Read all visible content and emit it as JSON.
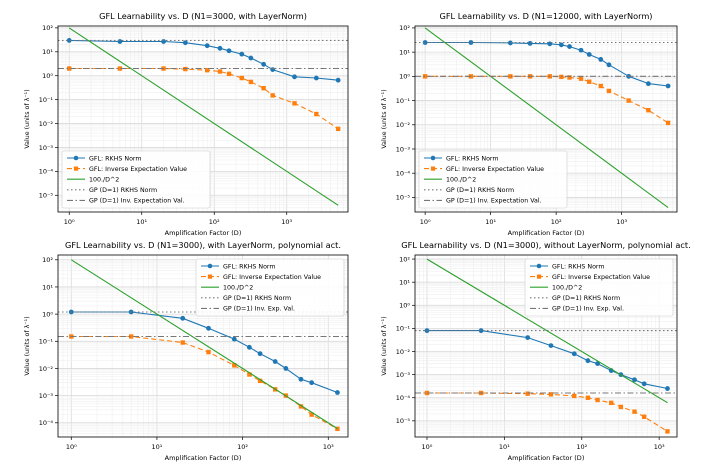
{
  "chart_data": [
    {
      "type": "line",
      "title": "GFL Learnability vs. D (N1=3000, with LayerNorm)",
      "xlabel": "Amplification Factor (D)",
      "ylabel": "Value (units of λ⁻¹)",
      "xscale": "log",
      "yscale": "log",
      "xlim": [
        0.7,
        7000
      ],
      "ylim": [
        2e-06,
        120
      ],
      "xticks": [
        1,
        10,
        100,
        1000
      ],
      "xtick_labels": [
        "10⁰",
        "10¹",
        "10²",
        "10³"
      ],
      "yticks": [
        1e-05,
        0.0001,
        0.001,
        0.01,
        0.1,
        1,
        10,
        100
      ],
      "ytick_labels": [
        "10⁻⁵",
        "10⁻⁴",
        "10⁻³",
        "10⁻²",
        "10⁻¹",
        "10⁰",
        "10¹",
        "10²"
      ],
      "grid": true,
      "legend_position": "lower-left",
      "series": [
        {
          "name": "GFL: RKHS Norm",
          "color": "#1f77b4",
          "style": "solid",
          "marker": "circle",
          "x": [
            1,
            5,
            20,
            40,
            80,
            120,
            160,
            240,
            320,
            480,
            640,
            1280,
            2560,
            5120
          ],
          "y": [
            30,
            27,
            27,
            24,
            18,
            14,
            11,
            8,
            5.5,
            3,
            1.8,
            0.9,
            0.8,
            0.65
          ]
        },
        {
          "name": "GFL: Inverse Expectation Value",
          "color": "#ff7f0e",
          "style": "dashed",
          "marker": "square",
          "x": [
            1,
            5,
            20,
            40,
            80,
            120,
            160,
            240,
            320,
            480,
            640,
            1280,
            2560,
            5120
          ],
          "y": [
            2,
            2,
            2,
            1.9,
            1.7,
            1.5,
            1.2,
            0.8,
            0.55,
            0.3,
            0.15,
            0.07,
            0.025,
            0.006
          ]
        },
        {
          "name": "100./D^2",
          "color": "#2ca02c",
          "style": "solid",
          "marker": "none",
          "x": [
            1,
            5120
          ],
          "y": [
            100,
            3.8e-06
          ]
        },
        {
          "name": "GP (D=1) RKHS Norm",
          "color": "#777777",
          "style": "dotted",
          "marker": "none",
          "x": [
            0.7,
            7000
          ],
          "y": [
            30,
            30
          ]
        },
        {
          "name": "GP (D=1) Inv. Expectation Val.",
          "color": "#777777",
          "style": "dashdot",
          "marker": "none",
          "x": [
            0.7,
            7000
          ],
          "y": [
            2,
            2
          ]
        }
      ]
    },
    {
      "type": "line",
      "title": "GFL Learnability vs. D (N1=12000, with LayerNorm)",
      "xlabel": "Amplification Factor (D)",
      "ylabel": "Value (units of λ⁻¹)",
      "xscale": "log",
      "yscale": "log",
      "xlim": [
        0.7,
        7000
      ],
      "ylim": [
        2.5e-06,
        120
      ],
      "xticks": [
        1,
        10,
        100,
        1000
      ],
      "xtick_labels": [
        "10⁰",
        "10¹",
        "10²",
        "10³"
      ],
      "yticks": [
        1e-05,
        0.0001,
        0.001,
        0.01,
        0.1,
        1,
        10,
        100
      ],
      "ytick_labels": [
        "10⁻⁵",
        "10⁻⁴",
        "10⁻³",
        "10⁻²",
        "10⁻¹",
        "10⁰",
        "10¹",
        "10²"
      ],
      "grid": true,
      "legend_position": "lower-left",
      "series": [
        {
          "name": "GFL: RKHS Norm",
          "color": "#1f77b4",
          "style": "solid",
          "marker": "circle",
          "x": [
            1,
            5,
            20,
            40,
            80,
            120,
            160,
            240,
            320,
            480,
            640,
            1280,
            2560,
            5120
          ],
          "y": [
            25,
            25,
            24,
            23,
            22,
            20,
            17,
            12,
            8,
            5,
            3,
            1,
            0.5,
            0.4
          ]
        },
        {
          "name": "GFL: Inverse Expectation Value",
          "color": "#ff7f0e",
          "style": "dashed",
          "marker": "square",
          "x": [
            1,
            5,
            20,
            40,
            80,
            120,
            160,
            240,
            320,
            480,
            640,
            1280,
            2560,
            5120
          ],
          "y": [
            1,
            1,
            1,
            1,
            1,
            0.95,
            0.9,
            0.8,
            0.6,
            0.4,
            0.25,
            0.1,
            0.04,
            0.012
          ]
        },
        {
          "name": "100./D^2",
          "color": "#2ca02c",
          "style": "solid",
          "marker": "none",
          "x": [
            1,
            5120
          ],
          "y": [
            100,
            3.8e-06
          ]
        },
        {
          "name": "GP (D=1) RKHS Norm",
          "color": "#777777",
          "style": "dotted",
          "marker": "none",
          "x": [
            0.7,
            7000
          ],
          "y": [
            25,
            25
          ]
        },
        {
          "name": "GP (D=1) Inv. Expectation Val.",
          "color": "#777777",
          "style": "dashdot",
          "marker": "none",
          "x": [
            0.7,
            7000
          ],
          "y": [
            1,
            1
          ]
        }
      ]
    },
    {
      "type": "line",
      "title": "GFL Learnability vs. D (N1=3000), with LayerNorm, polynomial act.",
      "xlabel": "Amplification Factor (D)",
      "ylabel": "Value (units of λ⁻¹)",
      "xscale": "log",
      "yscale": "log",
      "xlim": [
        0.7,
        1700
      ],
      "ylim": [
        3e-05,
        150
      ],
      "xticks": [
        1,
        10,
        100,
        1000
      ],
      "xtick_labels": [
        "10⁰",
        "10¹",
        "10²",
        "10³"
      ],
      "yticks": [
        0.0001,
        0.001,
        0.01,
        0.1,
        1,
        10,
        100
      ],
      "ytick_labels": [
        "10⁻⁴",
        "10⁻³",
        "10⁻²",
        "10⁻¹",
        "10⁰",
        "10¹",
        "10²"
      ],
      "grid": true,
      "legend_position": "upper-right",
      "series": [
        {
          "name": "GFL: RKHS Norm",
          "color": "#1f77b4",
          "style": "solid",
          "marker": "circle",
          "x": [
            1,
            5,
            20,
            40,
            80,
            120,
            160,
            240,
            320,
            480,
            640,
            1280
          ],
          "y": [
            1.2,
            1.2,
            0.7,
            0.3,
            0.12,
            0.06,
            0.035,
            0.018,
            0.01,
            0.004,
            0.003,
            0.0013
          ]
        },
        {
          "name": "GFL: Inverse Expectation Value",
          "color": "#ff7f0e",
          "style": "dashed",
          "marker": "square",
          "x": [
            1,
            5,
            20,
            40,
            80,
            120,
            160,
            240,
            320,
            480,
            640,
            1280
          ],
          "y": [
            0.15,
            0.15,
            0.09,
            0.04,
            0.013,
            0.006,
            0.0035,
            0.0017,
            0.001,
            0.0004,
            0.0002,
            6e-05
          ]
        },
        {
          "name": "100./D^2",
          "color": "#2ca02c",
          "style": "solid",
          "marker": "none",
          "x": [
            1,
            1280
          ],
          "y": [
            100,
            6.1e-05
          ]
        },
        {
          "name": "GP (D=1) RKHS Norm",
          "color": "#777777",
          "style": "dotted",
          "marker": "none",
          "x": [
            0.7,
            1700
          ],
          "y": [
            1.2,
            1.2
          ]
        },
        {
          "name": "GP (D=1) Inv. Exp. Val.",
          "color": "#777777",
          "style": "dashdot",
          "marker": "none",
          "x": [
            0.7,
            1700
          ],
          "y": [
            0.15,
            0.15
          ]
        }
      ]
    },
    {
      "type": "line",
      "title": "GFL Learnability vs. D (N1=3000), without LayerNorm, polynomial act.",
      "xlabel": "Amplification Factor (D)",
      "ylabel": "Value (units of λ⁻¹)",
      "xscale": "log",
      "yscale": "log",
      "xlim": [
        0.7,
        1700
      ],
      "ylim": [
        2e-06,
        150
      ],
      "xticks": [
        1,
        10,
        100,
        1000
      ],
      "xtick_labels": [
        "10⁰",
        "10¹",
        "10²",
        "10³"
      ],
      "yticks": [
        1e-05,
        0.0001,
        0.001,
        0.01,
        0.1,
        1,
        10,
        100
      ],
      "ytick_labels": [
        "10⁻⁵",
        "10⁻⁴",
        "10⁻³",
        "10⁻²",
        "10⁻¹",
        "10⁰",
        "10¹",
        "10²"
      ],
      "grid": true,
      "legend_position": "upper-right",
      "series": [
        {
          "name": "GFL: RKHS Norm",
          "color": "#1f77b4",
          "style": "solid",
          "marker": "circle",
          "x": [
            1,
            5,
            20,
            40,
            80,
            120,
            160,
            240,
            320,
            480,
            640,
            1280
          ],
          "y": [
            0.08,
            0.08,
            0.04,
            0.018,
            0.008,
            0.004,
            0.003,
            0.0015,
            0.001,
            0.0006,
            0.0004,
            0.00025
          ]
        },
        {
          "name": "GFL: Inverse Expectation Value",
          "color": "#ff7f0e",
          "style": "dashed",
          "marker": "square",
          "x": [
            1,
            5,
            20,
            40,
            80,
            120,
            160,
            240,
            320,
            480,
            640,
            1280
          ],
          "y": [
            0.00016,
            0.00016,
            0.00015,
            0.00014,
            0.00012,
            0.0001,
            8e-05,
            6e-05,
            4e-05,
            2.5e-05,
            1.5e-05,
            3.5e-06
          ]
        },
        {
          "name": "100./D^2",
          "color": "#2ca02c",
          "style": "solid",
          "marker": "none",
          "x": [
            1,
            1280
          ],
          "y": [
            100,
            6.1e-05
          ]
        },
        {
          "name": "GP (D=1) RKHS Norm",
          "color": "#777777",
          "style": "dotted",
          "marker": "none",
          "x": [
            0.7,
            1700
          ],
          "y": [
            0.08,
            0.08
          ]
        },
        {
          "name": "GP (D=1) Inv. Exp. Val.",
          "color": "#777777",
          "style": "dashdot",
          "marker": "none",
          "x": [
            0.7,
            1700
          ],
          "y": [
            0.00016,
            0.00016
          ]
        }
      ]
    }
  ]
}
